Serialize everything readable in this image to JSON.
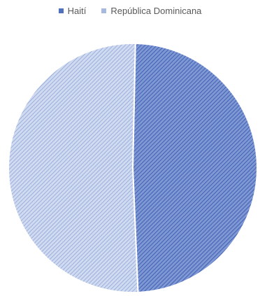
{
  "chart_data": {
    "type": "pie",
    "title": "",
    "legend_position": "top",
    "series": [
      {
        "slices": [
          {
            "label": "Haití",
            "value": 49.0,
            "color": "#4f71be"
          },
          {
            "label": "República Dominicana",
            "value": 51.0,
            "color": "#a8b9e0"
          }
        ]
      }
    ]
  },
  "legend": {
    "items": [
      {
        "label": "Haití",
        "color": "#4f71be"
      },
      {
        "label": "República Dominicana",
        "color": "#a8b9e0"
      }
    ]
  }
}
